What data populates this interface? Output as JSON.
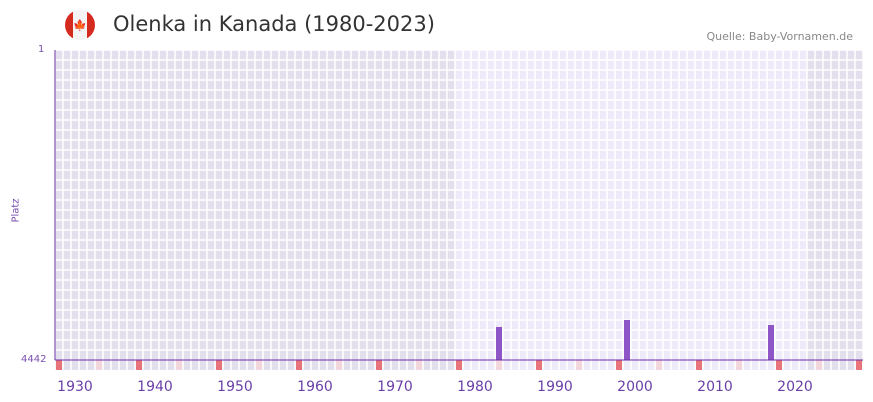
{
  "header": {
    "title": "Olenka in Kanada (1980-2023)",
    "source": "Quelle: Baby-Vornamen.de",
    "flag_icon": "canada-flag-icon"
  },
  "colors": {
    "bar": "#8e55c7",
    "axis": "#6a2fa8",
    "tick_major": "#e8737a",
    "tick_minor": "#f3d5dc",
    "bg_dark": "#e3dfec",
    "bg_light": "#efeafa"
  },
  "chart_data": {
    "type": "bar",
    "title": "Olenka in Kanada (1980-2023)",
    "ylabel": "Platz",
    "ylim": [
      1,
      4442
    ],
    "y_ticks": [
      "1",
      "4442"
    ],
    "xlim": [
      1928,
      2028
    ],
    "highlight_range": [
      1978,
      2021
    ],
    "x_ticks": [
      1930,
      1940,
      1950,
      1960,
      1970,
      1980,
      1990,
      2000,
      2010,
      2020
    ],
    "x_tick_labels": [
      "1930",
      "1940",
      "1950",
      "1960",
      "1970",
      "1980",
      "1990",
      "2000",
      "2010",
      "2020"
    ],
    "x": [
      1983,
      1999,
      2017
    ],
    "values": [
      3969,
      3869,
      3941
    ]
  }
}
